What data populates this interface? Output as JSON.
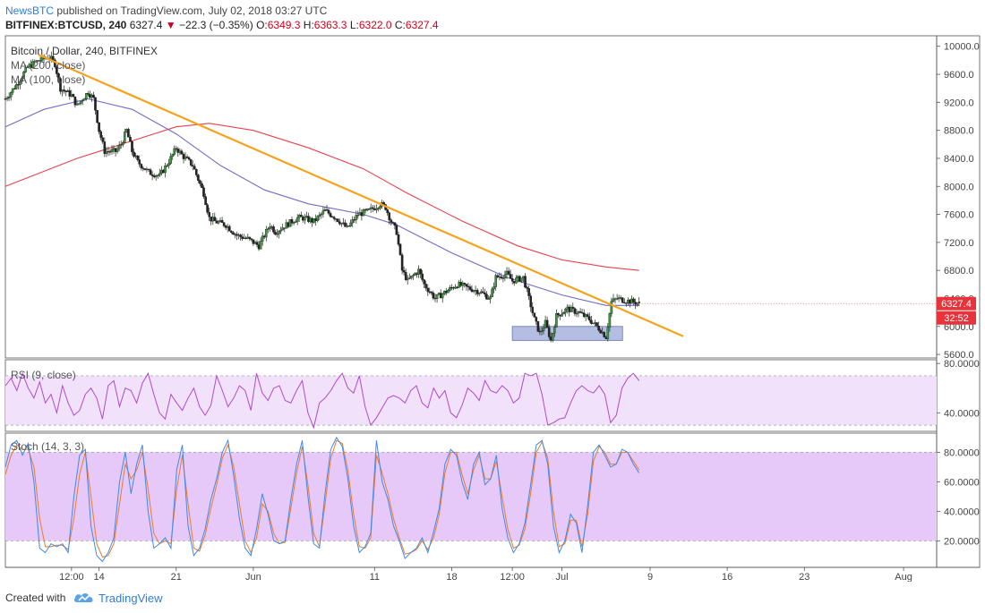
{
  "header": {
    "publisher": "NewsBTC",
    "published_text": "published on TradingView.com, July 02, 2018 03:27 UTC",
    "symbol": "BITFINEX:BTCUSD, 240",
    "last": "6327.4",
    "change_arrow": "▼",
    "change": "−22.3 (−0.35%)",
    "o_label": "O:",
    "o_value": "6349.3",
    "h_label": "H:",
    "h_value": "6363.3",
    "l_label": "L:",
    "l_value": "6322.0",
    "c_label": "C:",
    "c_value": "6327.4"
  },
  "legends": {
    "price_title": "Bitcoin / Dollar, 240, BITFINEX",
    "ma1": "MA (200, close)",
    "ma2": "MA (100, close)",
    "rsi": "RSI (9, close)",
    "stoch": "Stoch (14, 3, 3)"
  },
  "price_badge": {
    "value": "6327.4",
    "countdown": "32:52"
  },
  "footer": {
    "created_with": "Created with",
    "brand": "TradingView"
  },
  "colors": {
    "up_candle": "#3a9b3a",
    "down_candle": "#222222",
    "trendline": "#f7a21b",
    "ma200": "#e8414b",
    "ma100": "#6e6ec8",
    "rsi_line": "#b04ac9",
    "rsi_band": "#f1e1fb",
    "stoch_band": "#e6c9f8",
    "stoch_k": "#3d8ae8",
    "stoch_d": "#f07a2a",
    "support_box": "#9aa8d8",
    "badge": "#e8333a"
  },
  "chart_data": [
    {
      "type": "candlestick",
      "title": "Bitcoin / Dollar, 240, BITFINEX",
      "y_ticks": [
        5600,
        6000,
        6400,
        6800,
        7200,
        7600,
        8000,
        8400,
        8800,
        9200,
        9600,
        10000
      ],
      "y_tick_labels": [
        "5600.0",
        "6000.0",
        "6400.0",
        "6800.0",
        "7200.0",
        "7600.0",
        "8000.0",
        "8400.0",
        "8800.0",
        "9200.0",
        "9600.0",
        "10000.0"
      ],
      "ylim": [
        5550,
        10150
      ],
      "x_tick_labels": [
        "12:00",
        "14",
        "21",
        "Jun",
        "11",
        "18",
        "12:00",
        "Jul",
        "9",
        "16",
        "23",
        "Aug"
      ],
      "x_ticks_days": [
        1.5,
        4,
        11,
        18,
        29,
        36,
        41.5,
        46,
        54,
        61,
        68,
        77
      ],
      "xlim_days": [
        -4.5,
        80
      ],
      "close_path": [
        [
          -4.5,
          9250
        ],
        [
          -3.5,
          9450
        ],
        [
          -2.5,
          9700
        ],
        [
          -1.5,
          9800
        ],
        [
          -0.5,
          9850
        ],
        [
          0,
          9750
        ],
        [
          0.5,
          9400
        ],
        [
          1.5,
          9300
        ],
        [
          2,
          9150
        ],
        [
          3,
          9350
        ],
        [
          3.5,
          9250
        ],
        [
          4,
          8800
        ],
        [
          4.5,
          8500
        ],
        [
          5.5,
          8500
        ],
        [
          6,
          8600
        ],
        [
          6.5,
          8800
        ],
        [
          7,
          8500
        ],
        [
          7.5,
          8350
        ],
        [
          8.5,
          8200
        ],
        [
          9.5,
          8150
        ],
        [
          10.5,
          8400
        ],
        [
          11,
          8550
        ],
        [
          11.5,
          8450
        ],
        [
          12.5,
          8300
        ],
        [
          13.5,
          7900
        ],
        [
          14,
          7550
        ],
        [
          14.5,
          7500
        ],
        [
          15.5,
          7450
        ],
        [
          16.5,
          7300
        ],
        [
          17.5,
          7250
        ],
        [
          18.5,
          7150
        ],
        [
          19.5,
          7450
        ],
        [
          20,
          7350
        ],
        [
          21,
          7450
        ],
        [
          22,
          7550
        ],
        [
          22.5,
          7550
        ],
        [
          23.5,
          7500
        ],
        [
          24.5,
          7650
        ],
        [
          25.5,
          7550
        ],
        [
          26.5,
          7400
        ],
        [
          27.5,
          7600
        ],
        [
          28.5,
          7650
        ],
        [
          29.5,
          7750
        ],
        [
          30,
          7700
        ],
        [
          30.5,
          7500
        ],
        [
          31,
          7350
        ],
        [
          31.5,
          6800
        ],
        [
          32,
          6650
        ],
        [
          33,
          6800
        ],
        [
          33.5,
          6600
        ],
        [
          34,
          6500
        ],
        [
          34.5,
          6400
        ],
        [
          35.5,
          6500
        ],
        [
          36.5,
          6600
        ],
        [
          37.5,
          6550
        ],
        [
          38.5,
          6500
        ],
        [
          39.5,
          6400
        ],
        [
          40,
          6700
        ],
        [
          41,
          6750
        ],
        [
          41.5,
          6650
        ],
        [
          42.5,
          6700
        ],
        [
          43,
          6400
        ],
        [
          43.5,
          6100
        ],
        [
          44,
          5900
        ],
        [
          44.5,
          6050
        ],
        [
          45,
          5800
        ],
        [
          45.5,
          6150
        ],
        [
          46.5,
          6250
        ],
        [
          47.5,
          6200
        ],
        [
          48.5,
          6100
        ],
        [
          49.5,
          5950
        ],
        [
          50,
          5850
        ],
        [
          50.5,
          6350
        ],
        [
          51,
          6400
        ],
        [
          51.5,
          6380
        ],
        [
          52.5,
          6350
        ],
        [
          53,
          6327
        ]
      ],
      "trendline": {
        "start": [
          -1.5,
          9880
        ],
        "end": [
          57,
          5860
        ]
      },
      "ma200": [
        [
          -4.5,
          8000
        ],
        [
          2,
          8400
        ],
        [
          7,
          8650
        ],
        [
          11,
          8850
        ],
        [
          14,
          8900
        ],
        [
          18,
          8800
        ],
        [
          23,
          8550
        ],
        [
          28,
          8250
        ],
        [
          32,
          7900
        ],
        [
          37,
          7500
        ],
        [
          42,
          7150
        ],
        [
          46,
          6950
        ],
        [
          50,
          6850
        ],
        [
          53,
          6800
        ]
      ],
      "ma100": [
        [
          -4.5,
          8850
        ],
        [
          -1,
          9100
        ],
        [
          3,
          9250
        ],
        [
          7,
          9100
        ],
        [
          11,
          8750
        ],
        [
          15,
          8300
        ],
        [
          19,
          7950
        ],
        [
          23,
          7750
        ],
        [
          28,
          7600
        ],
        [
          31,
          7450
        ],
        [
          36,
          7050
        ],
        [
          41,
          6700
        ],
        [
          46,
          6450
        ],
        [
          50,
          6300
        ],
        [
          53,
          6300
        ]
      ],
      "support_zone": {
        "x_start": 41.5,
        "x_end": 51.5,
        "y_low": 5800,
        "y_high": 6000
      },
      "current_price": 6327.4
    },
    {
      "type": "line",
      "title": "RSI (9, close)",
      "y_ticks": [
        40,
        80
      ],
      "y_tick_labels": [
        "40.0000",
        "80.0000"
      ],
      "ylim": [
        25,
        83
      ],
      "band": [
        30,
        70
      ],
      "values": [
        62,
        68,
        58,
        72,
        60,
        52,
        65,
        48,
        55,
        40,
        62,
        48,
        38,
        42,
        55,
        60,
        52,
        35,
        62,
        66,
        45,
        60,
        58,
        48,
        64,
        72,
        55,
        40,
        35,
        55,
        48,
        42,
        52,
        60,
        45,
        38,
        46,
        70,
        58,
        45,
        52,
        62,
        58,
        42,
        72,
        56,
        50,
        60,
        62,
        50,
        48,
        58,
        66,
        40,
        28,
        48,
        52,
        58,
        66,
        72,
        60,
        56,
        70,
        45,
        30,
        36,
        44,
        52,
        54,
        52,
        48,
        58,
        62,
        48,
        44,
        60,
        52,
        58,
        40,
        36,
        46,
        60,
        56,
        50,
        66,
        58,
        56,
        62,
        58,
        48,
        52,
        72,
        70,
        72,
        55,
        30,
        32,
        35,
        36,
        48,
        58,
        62,
        58,
        56,
        62,
        55,
        32,
        38,
        60,
        68,
        72,
        66
      ]
    },
    {
      "type": "line",
      "title": "Stoch (14, 3, 3)",
      "y_ticks": [
        20,
        40,
        60,
        80
      ],
      "y_tick_labels": [
        "20.0000",
        "40.0000",
        "60.0000",
        "80.0000"
      ],
      "ylim": [
        2,
        93
      ],
      "band": [
        20,
        80
      ],
      "series": [
        {
          "name": "%K",
          "values": [
            70,
            85,
            88,
            78,
            86,
            60,
            15,
            12,
            18,
            16,
            18,
            12,
            50,
            78,
            82,
            30,
            10,
            6,
            12,
            22,
            60,
            80,
            52,
            72,
            85,
            40,
            15,
            18,
            22,
            15,
            68,
            85,
            30,
            10,
            15,
            28,
            48,
            62,
            80,
            88,
            64,
            35,
            15,
            10,
            28,
            52,
            38,
            20,
            18,
            20,
            48,
            72,
            88,
            50,
            18,
            15,
            52,
            82,
            90,
            84,
            62,
            30,
            12,
            16,
            25,
            88,
            60,
            48,
            30,
            20,
            8,
            12,
            15,
            22,
            12,
            26,
            42,
            72,
            82,
            78,
            60,
            48,
            72,
            80,
            58,
            62,
            78,
            42,
            22,
            12,
            18,
            32,
            58,
            85,
            88,
            72,
            30,
            12,
            20,
            38,
            32,
            12,
            44,
            80,
            85,
            78,
            70,
            72,
            82,
            80,
            72,
            66
          ]
        },
        {
          "name": "%D",
          "values": [
            65,
            78,
            85,
            82,
            82,
            70,
            35,
            16,
            16,
            17,
            17,
            14,
            35,
            65,
            80,
            50,
            18,
            9,
            10,
            18,
            45,
            72,
            62,
            68,
            80,
            55,
            25,
            18,
            20,
            18,
            55,
            78,
            45,
            15,
            13,
            24,
            42,
            58,
            76,
            85,
            70,
            45,
            20,
            12,
            22,
            45,
            40,
            25,
            18,
            19,
            42,
            66,
            84,
            58,
            25,
            16,
            45,
            76,
            88,
            86,
            68,
            38,
            16,
            15,
            22,
            78,
            66,
            52,
            35,
            22,
            11,
            12,
            14,
            20,
            14,
            22,
            38,
            66,
            80,
            80,
            65,
            52,
            68,
            78,
            62,
            62,
            74,
            50,
            28,
            15,
            17,
            28,
            52,
            80,
            87,
            76,
            40,
            16,
            18,
            34,
            34,
            16,
            38,
            74,
            84,
            80,
            72,
            72,
            80,
            80,
            74,
            68
          ]
        }
      ]
    }
  ]
}
